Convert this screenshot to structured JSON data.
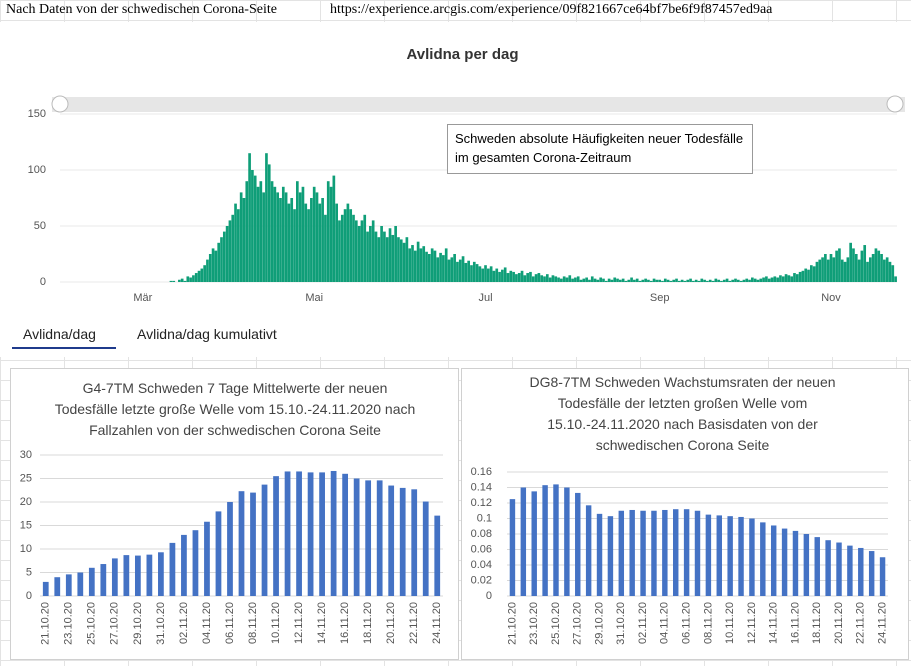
{
  "header": {
    "source": "Nach Daten von der schwedischen Corona-Seite",
    "url": "https://experience.arcgis.com/experience/09f821667ce64bf7be6f9f87457ed9aa"
  },
  "tabs": [
    "Avlidna/dag",
    "Avlidna/dag kumulativt"
  ],
  "chart_data": [
    {
      "type": "bar",
      "title": "Avlidna per dag",
      "annotation": "Schweden absolute Häufigkeiten neuer Todesfälle im gesamten Corona-Zeitraum",
      "color": "#0f9e78",
      "grid": true,
      "ylim": [
        0,
        150
      ],
      "yticks": [
        0,
        50,
        100,
        150
      ],
      "categories": [
        null,
        null,
        null,
        null,
        null,
        null,
        null,
        null,
        null,
        null,
        null,
        null,
        null,
        null,
        null,
        null,
        null,
        null,
        null,
        null,
        null,
        null,
        null,
        null,
        null,
        null,
        null,
        null,
        null,
        "Mär",
        null,
        null,
        null,
        null,
        null,
        null,
        null,
        null,
        null,
        null,
        null,
        null,
        null,
        null,
        null,
        null,
        null,
        null,
        null,
        null,
        null,
        null,
        null,
        null,
        null,
        null,
        null,
        null,
        null,
        null,
        null,
        null,
        null,
        null,
        null,
        null,
        null,
        null,
        null,
        null,
        null,
        null,
        null,
        null,
        null,
        null,
        null,
        null,
        null,
        null,
        null,
        null,
        null,
        null,
        null,
        null,
        null,
        null,
        null,
        null,
        "Mai",
        null,
        null,
        null,
        null,
        null,
        null,
        null,
        null,
        null,
        null,
        null,
        null,
        null,
        null,
        null,
        null,
        null,
        null,
        null,
        null,
        null,
        null,
        null,
        null,
        null,
        null,
        null,
        null,
        null,
        null,
        null,
        null,
        null,
        null,
        null,
        null,
        null,
        null,
        null,
        null,
        null,
        null,
        null,
        null,
        null,
        null,
        null,
        null,
        null,
        null,
        null,
        null,
        null,
        null,
        null,
        null,
        null,
        null,
        null,
        null,
        "Jul",
        null,
        null,
        null,
        null,
        null,
        null,
        null,
        null,
        null,
        null,
        null,
        null,
        null,
        null,
        null,
        null,
        null,
        null,
        null,
        null,
        null,
        null,
        null,
        null,
        null,
        null,
        null,
        null,
        null,
        null,
        null,
        null,
        null,
        null,
        null,
        null,
        null,
        null,
        null,
        null,
        null,
        null,
        null,
        null,
        null,
        null,
        null,
        null,
        null,
        null,
        null,
        null,
        null,
        null,
        null,
        null,
        null,
        null,
        null,
        null,
        null,
        "Sep",
        null,
        null,
        null,
        null,
        null,
        null,
        null,
        null,
        null,
        null,
        null,
        null,
        null,
        null,
        null,
        null,
        null,
        null,
        null,
        null,
        null,
        null,
        null,
        null,
        null,
        null,
        null,
        null,
        null,
        null,
        null,
        null,
        null,
        null,
        null,
        null,
        null,
        null,
        null,
        null,
        null,
        null,
        null,
        null,
        null,
        null,
        null,
        null,
        null,
        null,
        null,
        null,
        null,
        null,
        null,
        null,
        null,
        null,
        null,
        null,
        "Nov",
        null,
        null,
        null,
        null,
        null,
        null,
        null,
        null,
        null,
        null,
        null,
        null,
        null,
        null,
        null,
        null,
        null,
        null,
        null,
        null,
        null,
        null,
        null
      ],
      "values": [
        0,
        0,
        0,
        0,
        0,
        0,
        0,
        0,
        0,
        0,
        0,
        0,
        0,
        0,
        0,
        0,
        0,
        0,
        0,
        0,
        0,
        0,
        0,
        0,
        0,
        0,
        0,
        0,
        0,
        0,
        0,
        0,
        0,
        0,
        0,
        0,
        0,
        0,
        0,
        1,
        1,
        0,
        2,
        3,
        1,
        5,
        4,
        6,
        8,
        10,
        12,
        15,
        20,
        25,
        30,
        28,
        35,
        40,
        45,
        50,
        55,
        60,
        70,
        65,
        80,
        75,
        90,
        115,
        100,
        95,
        85,
        90,
        80,
        115,
        105,
        90,
        85,
        80,
        75,
        85,
        80,
        70,
        75,
        65,
        90,
        80,
        85,
        70,
        65,
        75,
        85,
        80,
        70,
        75,
        60,
        90,
        85,
        95,
        70,
        55,
        60,
        65,
        70,
        65,
        60,
        55,
        50,
        55,
        60,
        45,
        50,
        55,
        45,
        40,
        50,
        45,
        40,
        48,
        42,
        50,
        40,
        38,
        35,
        40,
        30,
        33,
        28,
        36,
        30,
        32,
        27,
        25,
        30,
        28,
        22,
        26,
        24,
        30,
        20,
        22,
        25,
        18,
        20,
        23,
        17,
        19,
        15,
        18,
        16,
        14,
        12,
        15,
        12,
        14,
        10,
        12,
        9,
        11,
        13,
        8,
        10,
        9,
        7,
        8,
        10,
        6,
        8,
        9,
        5,
        7,
        8,
        6,
        5,
        7,
        4,
        6,
        5,
        4,
        3,
        5,
        4,
        6,
        3,
        4,
        5,
        2,
        3,
        4,
        2,
        5,
        3,
        2,
        4,
        3,
        1,
        3,
        2,
        4,
        3,
        2,
        3,
        1,
        2,
        4,
        2,
        3,
        1,
        2,
        3,
        2,
        1,
        3,
        2,
        2,
        1,
        3,
        2,
        1,
        2,
        3,
        1,
        2,
        1,
        2,
        3,
        1,
        2,
        1,
        3,
        2,
        1,
        2,
        1,
        3,
        2,
        1,
        2,
        3,
        1,
        2,
        3,
        2,
        1,
        2,
        3,
        2,
        4,
        3,
        2,
        3,
        4,
        5,
        3,
        4,
        5,
        4,
        6,
        5,
        7,
        6,
        5,
        8,
        7,
        9,
        10,
        12,
        11,
        15,
        14,
        18,
        20,
        22,
        25,
        20,
        25,
        22,
        28,
        30,
        20,
        18,
        22,
        35,
        30,
        25,
        20,
        28,
        33,
        18,
        22,
        25,
        30,
        28,
        25,
        20,
        22,
        18,
        15,
        5
      ]
    },
    {
      "type": "bar",
      "title": "G4-7TM  Schweden 7 Tage Mittelwerte der neuen Todesfälle letzte große Welle vom 15.10.-24.11.2020 nach Fallzahlen von der schwedischen Corona Seite",
      "color": "#4472c4",
      "grid": true,
      "ylim": [
        0,
        30
      ],
      "yticks": [
        0,
        5,
        10,
        15,
        20,
        25,
        30
      ],
      "categories": [
        "21.10.20",
        null,
        "23.10.20",
        null,
        "25.10.20",
        null,
        "27.10.20",
        null,
        "29.10.20",
        null,
        "31.10.20",
        null,
        "02.11.20",
        null,
        "04.11.20",
        null,
        "06.11.20",
        null,
        "08.11.20",
        null,
        "10.11.20",
        null,
        "12.11.20",
        null,
        "14.11.20",
        null,
        "16.11.20",
        null,
        "18.11.20",
        null,
        "20.11.20",
        null,
        "22.11.20",
        null,
        "24.11.20"
      ],
      "values": [
        3,
        4,
        4.6,
        5,
        6,
        6.8,
        8,
        8.7,
        8.6,
        8.8,
        9.3,
        11.3,
        13,
        14,
        15.8,
        18,
        20,
        22.3,
        22,
        23.7,
        25.5,
        26.5,
        26.5,
        26.3,
        26.3,
        26.6,
        26,
        25,
        24.6,
        24.6,
        23.5,
        23,
        22.7,
        20.1,
        17.1
      ]
    },
    {
      "type": "bar",
      "title": "DG8-7TM Schweden Wachstumsraten der neuen Todesfälle der letzten großen Welle vom 15.10.-24.11.2020 nach Basisdaten von der schwedischen Corona Seite",
      "color": "#4472c4",
      "grid": true,
      "ylim": [
        0,
        0.16
      ],
      "yticks": [
        0,
        0.02,
        0.04,
        0.06,
        0.08,
        0.1,
        0.12,
        0.14,
        0.16
      ],
      "categories": [
        "21.10.20",
        null,
        "23.10.20",
        null,
        "25.10.20",
        null,
        "27.10.20",
        null,
        "29.10.20",
        null,
        "31.10.20",
        null,
        "02.11.20",
        null,
        "04.11.20",
        null,
        "06.11.20",
        null,
        "08.11.20",
        null,
        "10.11.20",
        null,
        "12.11.20",
        null,
        "14.11.20",
        null,
        "16.11.20",
        null,
        "18.11.20",
        null,
        "20.11.20",
        null,
        "22.11.20",
        null,
        "24.11.20"
      ],
      "values": [
        0.125,
        0.14,
        0.135,
        0.143,
        0.144,
        0.14,
        0.133,
        0.117,
        0.106,
        0.103,
        0.11,
        0.111,
        0.11,
        0.11,
        0.111,
        0.112,
        0.112,
        0.11,
        0.105,
        0.104,
        0.103,
        0.102,
        0.1,
        0.095,
        0.091,
        0.087,
        0.084,
        0.08,
        0.076,
        0.072,
        0.069,
        0.065,
        0.062,
        0.058,
        0.05
      ]
    }
  ]
}
